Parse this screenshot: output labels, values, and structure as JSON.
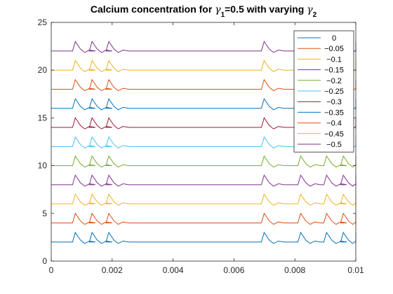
{
  "chart_data": {
    "type": "line",
    "title": {
      "prefix": "Calcium concentration for ",
      "g1_symbol": "γ",
      "g1_sub": "1",
      "middle": "=0.5 with varying ",
      "g2_symbol": "γ",
      "g2_sub": "2"
    },
    "xlabel": "",
    "ylabel": "",
    "xlim": [
      0,
      0.01
    ],
    "ylim": [
      0,
      25
    ],
    "xticks": [
      0,
      0.002,
      0.004,
      0.006,
      0.008,
      0.01
    ],
    "xtick_labels": [
      "0",
      "0.002",
      "0.004",
      "0.006",
      "0.008",
      "0.01"
    ],
    "yticks": [
      0,
      5,
      10,
      15,
      20,
      25
    ],
    "ytick_labels": [
      "0",
      "5",
      "10",
      "15",
      "20",
      "25"
    ],
    "grid": false,
    "legend_position": "top-right",
    "series": [
      {
        "name": "0",
        "color": "#0072BD",
        "baseline": 2,
        "spikes": [
          0.0007,
          0.00125,
          0.0018,
          0.0069,
          0.0081,
          0.00895,
          0.0095,
          0.01
        ]
      },
      {
        "name": "−0.05",
        "color": "#D95319",
        "baseline": 4,
        "spikes": [
          0.0007,
          0.00125,
          0.0018,
          0.0069,
          0.0081,
          0.00895,
          0.0095,
          0.01
        ]
      },
      {
        "name": "−0.1",
        "color": "#EDB120",
        "baseline": 6,
        "spikes": [
          0.0007,
          0.00125,
          0.0018,
          0.0069,
          0.0081,
          0.00895,
          0.0095,
          0.01
        ]
      },
      {
        "name": "−0.15",
        "color": "#7E2F8E",
        "baseline": 8,
        "spikes": [
          0.0007,
          0.00125,
          0.0018,
          0.0069,
          0.0081,
          0.00895,
          0.0095,
          0.01
        ]
      },
      {
        "name": "−0.2",
        "color": "#77AC30",
        "baseline": 10,
        "spikes": [
          0.0007,
          0.00125,
          0.0018,
          0.0069,
          0.0081,
          0.00895,
          0.0095,
          0.01
        ]
      },
      {
        "name": "−0.25",
        "color": "#4DBEEE",
        "baseline": 12,
        "spikes": [
          0.0007,
          0.00125,
          0.0018,
          0.0069,
          0.0081,
          0.00895,
          0.0095,
          0.01
        ]
      },
      {
        "name": "−0.3",
        "color": "#A2142F",
        "baseline": 14,
        "spikes": [
          0.0007,
          0.00125,
          0.0018,
          0.0069,
          0.0081,
          0.00895,
          0.0095,
          0.01
        ]
      },
      {
        "name": "−0.35",
        "color": "#0072BD",
        "baseline": 16,
        "spikes": [
          0.0007,
          0.00125,
          0.0018,
          0.0069,
          0.0081,
          0.00895,
          0.0095,
          0.01
        ]
      },
      {
        "name": "−0.4",
        "color": "#D95319",
        "baseline": 18,
        "spikes": [
          0.0007,
          0.00125,
          0.0018,
          0.0069,
          0.0081,
          0.00895,
          0.0095,
          0.01
        ]
      },
      {
        "name": "−0.45",
        "color": "#EDB120",
        "baseline": 20,
        "spikes": [
          0.0007,
          0.00125,
          0.0018,
          0.0069,
          0.0081,
          0.00895,
          0.0095,
          0.01
        ]
      },
      {
        "name": "−0.5",
        "color": "#7E2F8E",
        "baseline": 22,
        "spikes": [
          0.0007,
          0.00125,
          0.0018,
          0.0069,
          0.0081,
          0.00895,
          0.0095,
          0.01
        ]
      }
    ]
  }
}
